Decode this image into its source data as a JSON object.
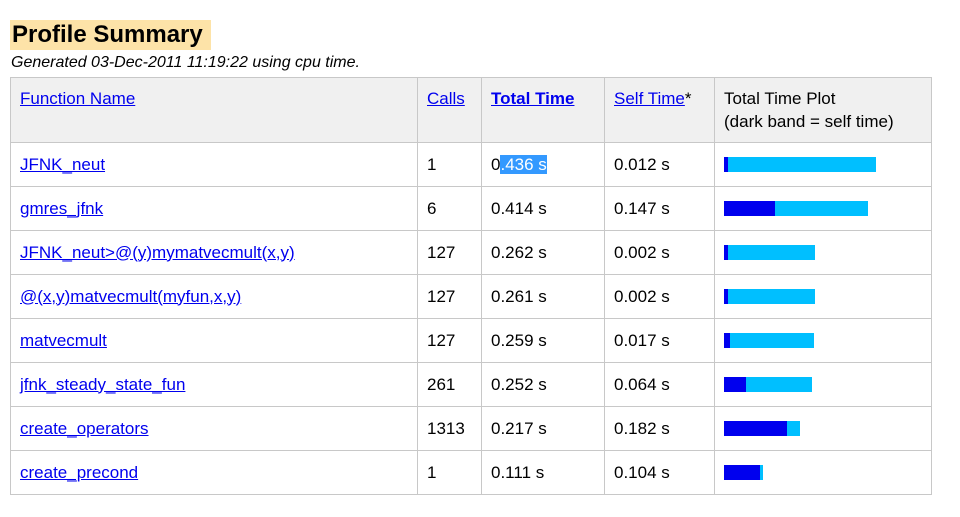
{
  "title": "Profile Summary",
  "subtitle": "Generated 03-Dec-2011 11:19:22 using cpu time.",
  "colors": {
    "total_bar": "#00bfff",
    "self_bar": "#0000ee",
    "title_bg": "#fde3a8",
    "link": "#0000ee"
  },
  "table": {
    "headers": {
      "function_name": "Function Name",
      "calls": "Calls",
      "total_time": "Total Time",
      "self_time": "Self Time",
      "self_time_suffix": "*",
      "plot_line1": "Total Time Plot",
      "plot_line2": "(dark band = self time)"
    },
    "rows": [
      {
        "name": "JFNK_neut",
        "calls": "1",
        "total_a": "0",
        "total_b": ".436 s",
        "self": "0.012 s",
        "total_s": 0.436,
        "self_s": 0.012
      },
      {
        "name": "gmres_jfnk",
        "calls": "6",
        "total_a": "0.414 s",
        "total_b": "",
        "self": "0.147 s",
        "total_s": 0.414,
        "self_s": 0.147
      },
      {
        "name": "JFNK_neut>@(y)mymatvecmult(x,y)",
        "calls": "127",
        "total_a": "0.262 s",
        "total_b": "",
        "self": "0.002 s",
        "total_s": 0.262,
        "self_s": 0.002
      },
      {
        "name": "@(x,y)matvecmult(myfun,x,y)",
        "calls": "127",
        "total_a": "0.261 s",
        "total_b": "",
        "self": "0.002 s",
        "total_s": 0.261,
        "self_s": 0.002
      },
      {
        "name": "matvecmult",
        "calls": "127",
        "total_a": "0.259 s",
        "total_b": "",
        "self": "0.017 s",
        "total_s": 0.259,
        "self_s": 0.017
      },
      {
        "name": "jfnk_steady_state_fun",
        "calls": "261",
        "total_a": "0.252 s",
        "total_b": "",
        "self": "0.064 s",
        "total_s": 0.252,
        "self_s": 0.064
      },
      {
        "name": "create_operators",
        "calls": "1313",
        "total_a": "0.217 s",
        "total_b": "",
        "self": "0.182 s",
        "total_s": 0.217,
        "self_s": 0.182
      },
      {
        "name": "create_precond",
        "calls": "1",
        "total_a": "0.111 s",
        "total_b": "",
        "self": "0.104 s",
        "total_s": 0.111,
        "self_s": 0.104
      }
    ]
  }
}
